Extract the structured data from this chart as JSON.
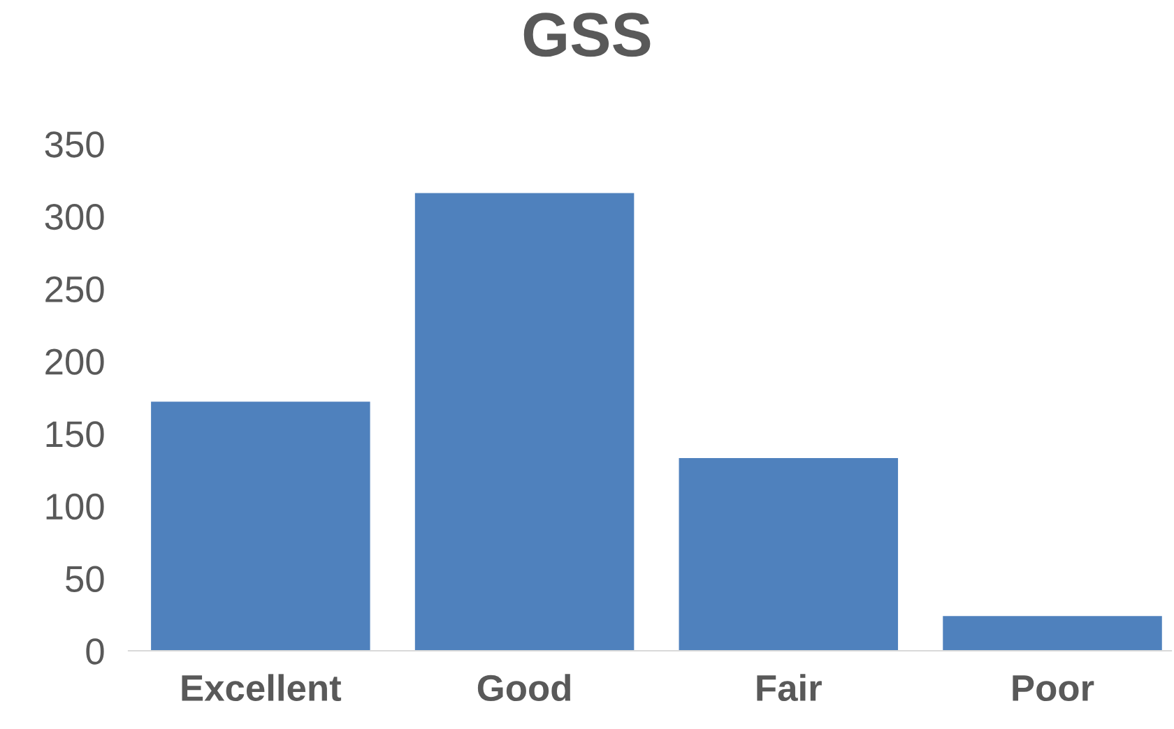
{
  "chart_data": {
    "type": "bar",
    "title": "GSS",
    "categories": [
      "Excellent",
      "Good",
      "Fair",
      "Poor"
    ],
    "values": [
      172,
      316,
      133,
      24
    ],
    "color": "#4f81bd",
    "ylim": [
      0,
      350
    ],
    "yticks": [
      0,
      50,
      100,
      150,
      200,
      250,
      300,
      350
    ],
    "grid": false,
    "legend": false
  }
}
